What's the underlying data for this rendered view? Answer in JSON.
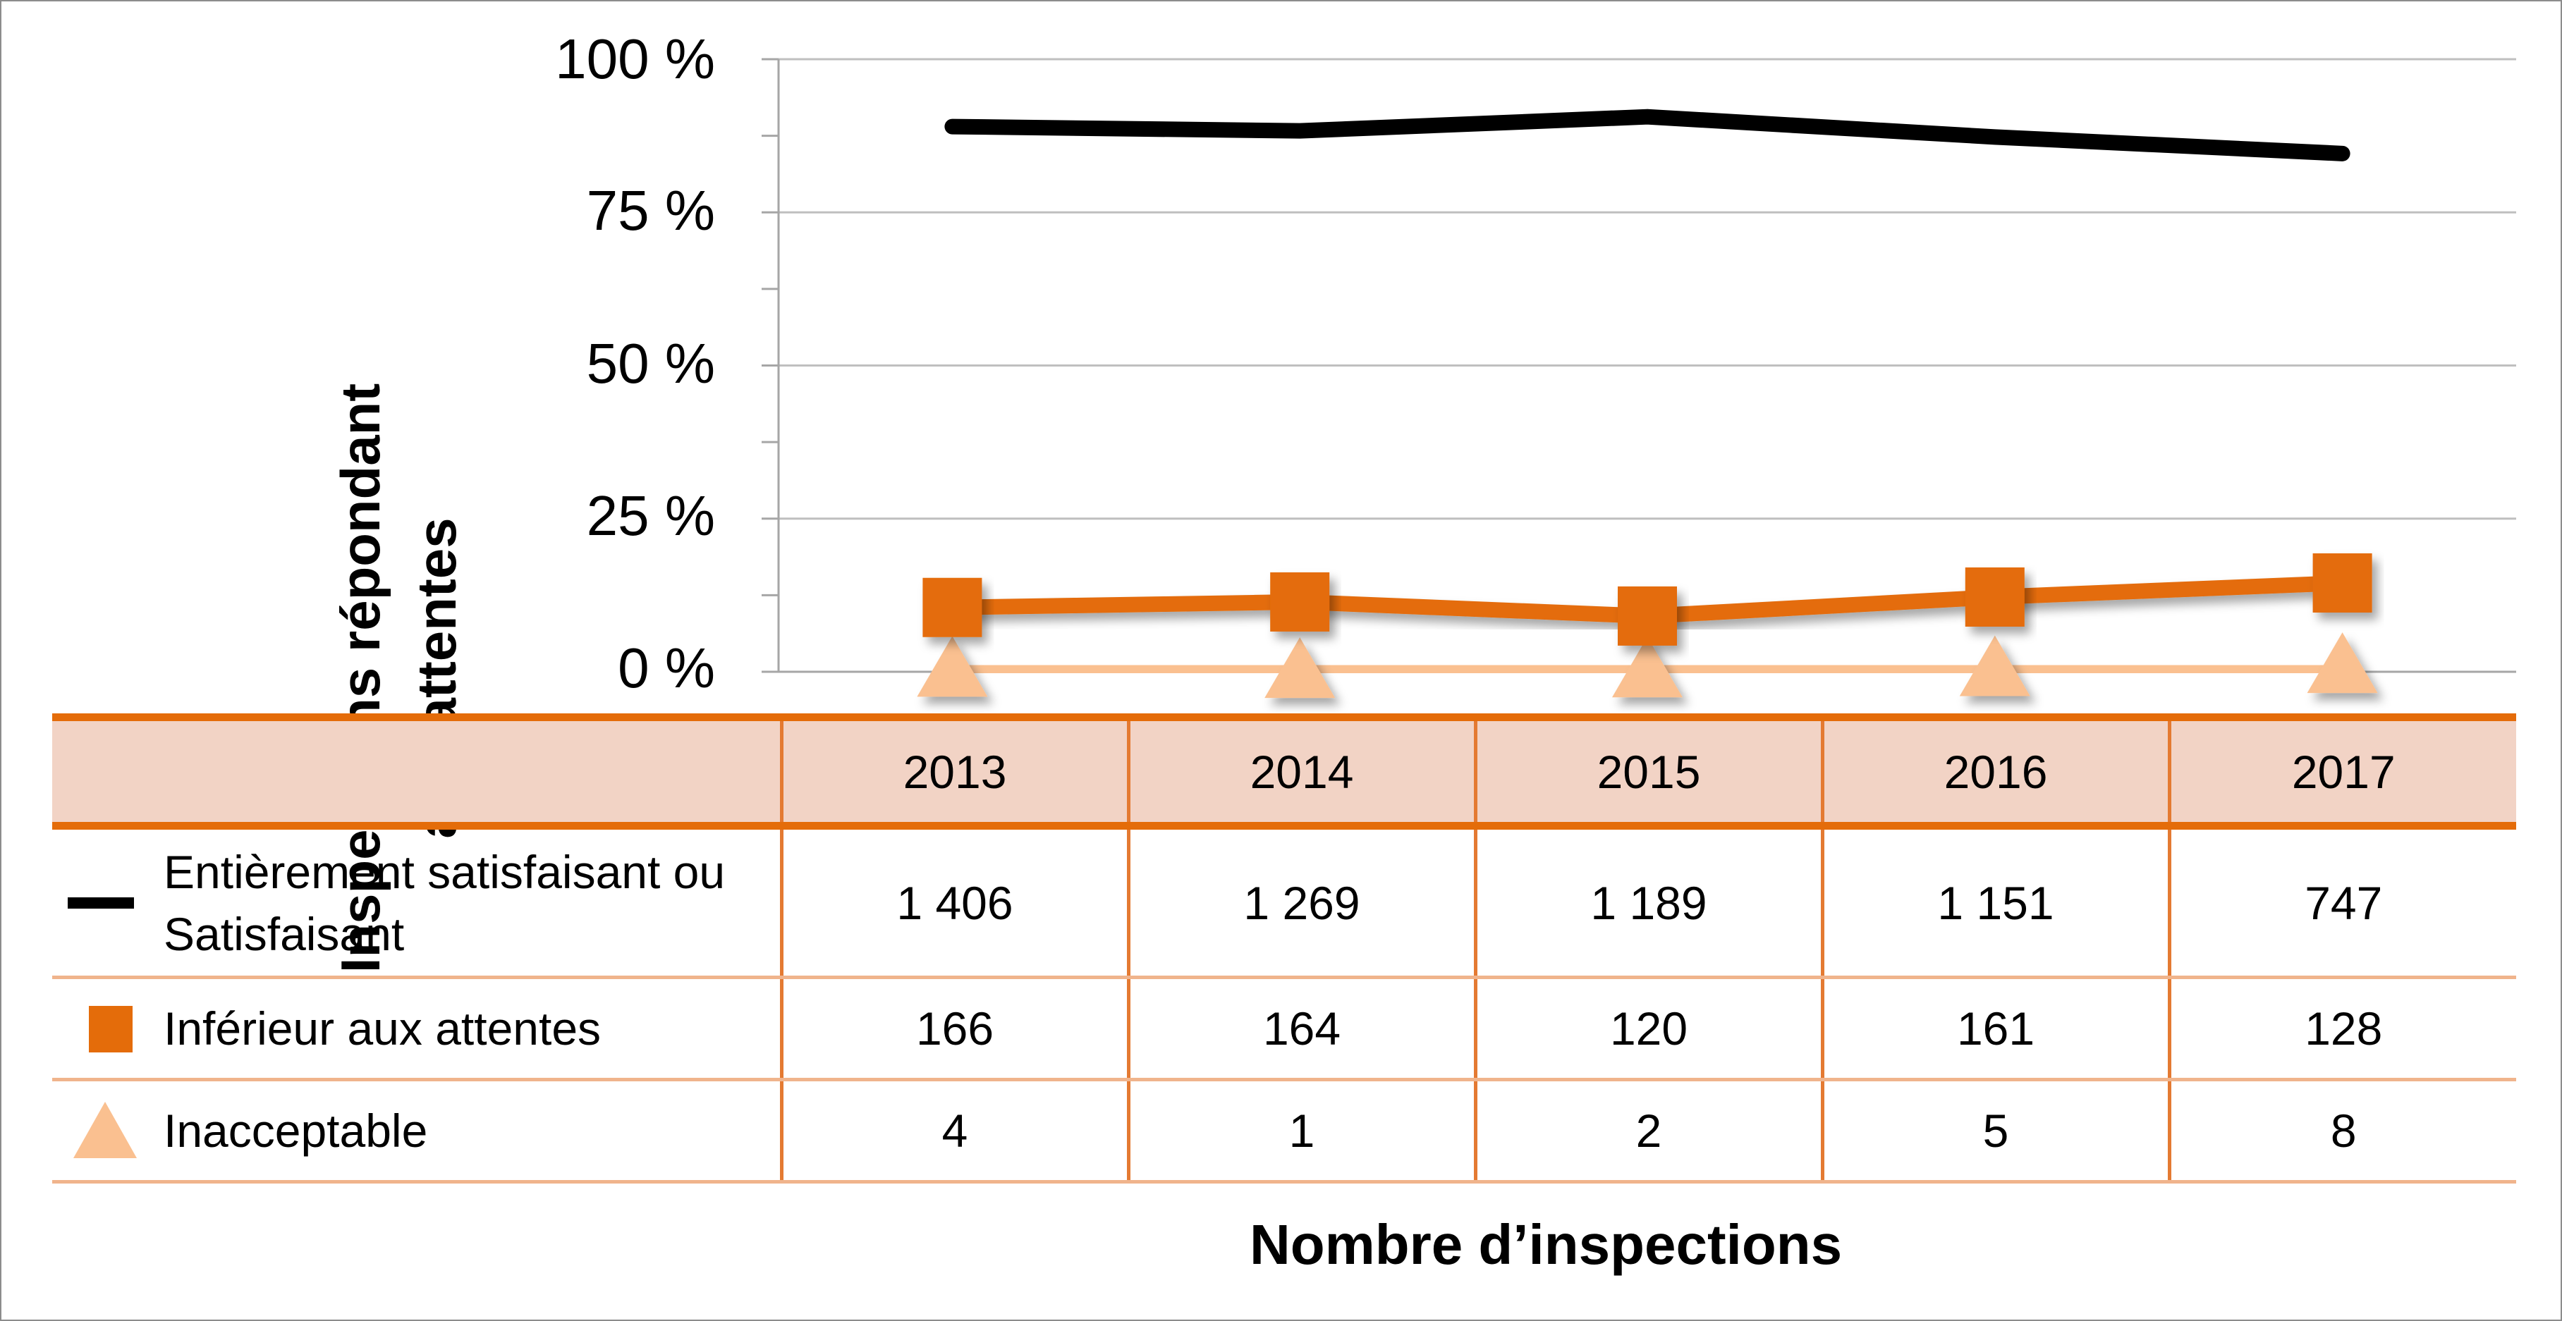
{
  "chart_data": {
    "type": "line",
    "categories": [
      "2013",
      "2014",
      "2015",
      "2016",
      "2017"
    ],
    "series": [
      {
        "name": "Entièrement satisfaisant ou Satisfaisant",
        "values": [
          89.0,
          88.3,
          90.6,
          87.3,
          84.6
        ],
        "counts": [
          "1 406",
          "1 269",
          "1 189",
          "1 151",
          "747"
        ],
        "color": "#000000",
        "marker": "none"
      },
      {
        "name": "Inférieur aux attentes",
        "values": [
          10.5,
          11.4,
          9.1,
          12.2,
          14.5
        ],
        "counts": [
          "166",
          "164",
          "120",
          "161",
          "128"
        ],
        "color": "#e46c0a",
        "marker": "square"
      },
      {
        "name": "Inacceptable",
        "values": [
          0.3,
          0.1,
          0.2,
          0.4,
          0.9
        ],
        "counts": [
          "4",
          "1",
          "2",
          "5",
          "8"
        ],
        "color": "#fac090",
        "marker": "triangle"
      }
    ],
    "ylim": [
      0,
      100
    ],
    "yticks": [
      "0 %",
      "25 %",
      "50 %",
      "75 %",
      "100 %"
    ],
    "ylabel_line1": "Inspections répondant",
    "ylabel_line2": "aux attentes",
    "xlabel": "Nombre d’inspections",
    "grid": true,
    "legend": "table-rows"
  }
}
